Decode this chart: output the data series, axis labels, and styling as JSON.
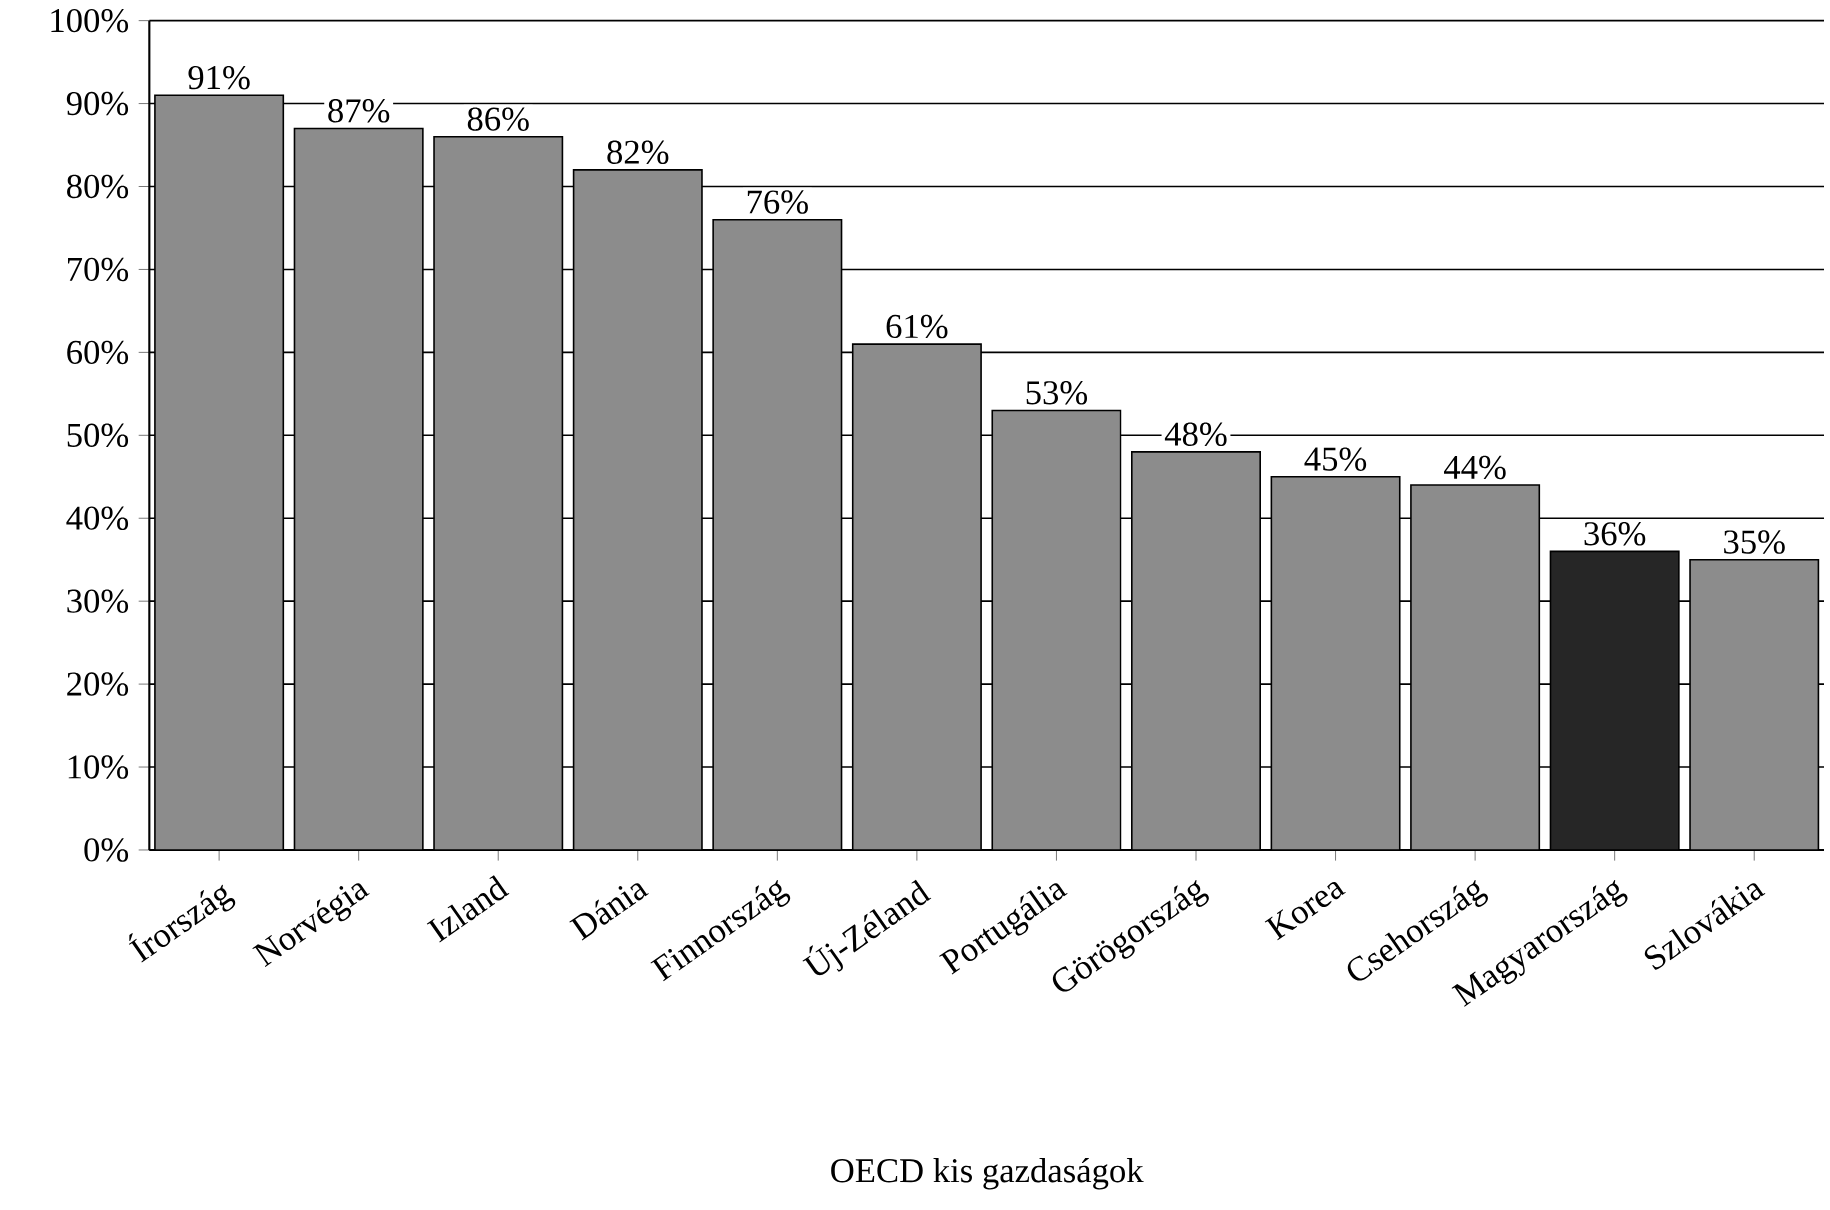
{
  "chart_data": {
    "type": "bar",
    "xlabel": "OECD kis gazdaságok",
    "categories": [
      "Írország",
      "Norvégia",
      "Izland",
      "Dánia",
      "Finnország",
      "Új-Zéland",
      "Portugália",
      "Görögország",
      "Korea",
      "Csehország",
      "Magyarország",
      "Szlovákia"
    ],
    "values": [
      91,
      87,
      86,
      82,
      76,
      61,
      53,
      48,
      45,
      44,
      36,
      35
    ],
    "value_labels": [
      "91%",
      "87%",
      "86%",
      "82%",
      "76%",
      "61%",
      "53%",
      "48%",
      "45%",
      "44%",
      "36%",
      "35%"
    ],
    "colors": [
      "#8c8c8c",
      "#8c8c8c",
      "#8c8c8c",
      "#8c8c8c",
      "#8c8c8c",
      "#8c8c8c",
      "#8c8c8c",
      "#8c8c8c",
      "#8c8c8c",
      "#8c8c8c",
      "#262626",
      "#8c8c8c"
    ],
    "ylim": [
      0,
      100
    ],
    "yticks": [
      {
        "value": 0,
        "label": "0%"
      },
      {
        "value": 10,
        "label": "10%"
      },
      {
        "value": 20,
        "label": "20%"
      },
      {
        "value": 30,
        "label": "30%"
      },
      {
        "value": 40,
        "label": "40%"
      },
      {
        "value": 50,
        "label": "50%"
      },
      {
        "value": 60,
        "label": "60%"
      },
      {
        "value": 70,
        "label": "70%"
      },
      {
        "value": 80,
        "label": "80%"
      },
      {
        "value": 90,
        "label": "90%"
      },
      {
        "value": 100,
        "label": "100%"
      }
    ],
    "grid": "y"
  }
}
